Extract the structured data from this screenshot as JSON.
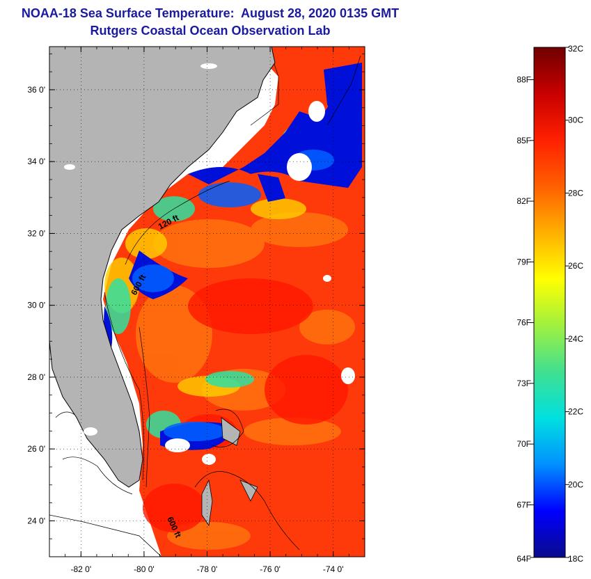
{
  "header": {
    "title": "NOAA-18 Sea Surface Temperature:  August 28, 2020 0135 GMT",
    "subtitle": "Rutgers Coastal Ocean Observation Lab"
  },
  "map": {
    "lon_range": [
      -83,
      -73
    ],
    "lat_range": [
      23,
      37.2
    ],
    "lon_ticks": [
      "-82 0'",
      "-80 0'",
      "-78 0'",
      "-76 0'",
      "-74 0'"
    ],
    "lon_tick_values": [
      -82,
      -80,
      -78,
      -76,
      -74
    ],
    "lat_ticks": [
      "24 0'",
      "26 0'",
      "28 0'",
      "30 0'",
      "32 0'",
      "34 0'",
      "36 0'"
    ],
    "lat_tick_values": [
      24,
      26,
      28,
      30,
      32,
      34,
      36
    ],
    "land_color": "#b4b4b4",
    "no_data_color": "#ffffff",
    "contour_labels": [
      "120 ft",
      "600 ft",
      "600 ft"
    ]
  },
  "colorbar": {
    "min_c": 18,
    "max_c": 32,
    "celsius_labels": [
      "32C",
      "30C",
      "28C",
      "26C",
      "24C",
      "22C",
      "20C",
      "18C"
    ],
    "celsius_values": [
      32,
      30,
      28,
      26,
      24,
      22,
      20,
      18
    ],
    "fahrenheit_labels": [
      "88F",
      "85F",
      "82F",
      "79F",
      "76F",
      "73F",
      "70F",
      "67F",
      "64F"
    ],
    "fahrenheit_values": [
      88,
      85,
      82,
      79,
      76,
      73,
      70,
      67,
      64
    ],
    "stops": [
      "#0a0a8c",
      "#0000ff",
      "#0090ff",
      "#00e0e0",
      "#40e090",
      "#a0f040",
      "#ffff00",
      "#ffb000",
      "#ff6000",
      "#ff2000",
      "#c80000",
      "#700000"
    ]
  }
}
